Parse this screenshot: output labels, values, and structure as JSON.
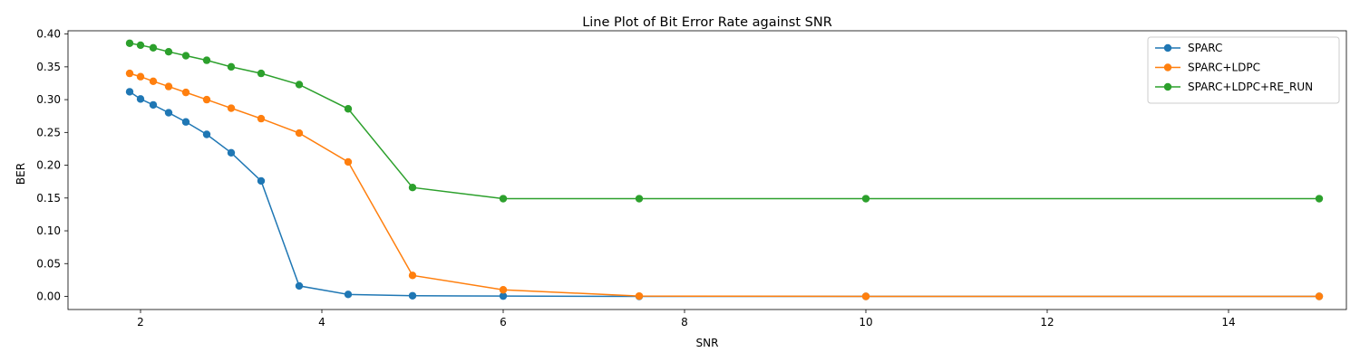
{
  "chart_data": {
    "type": "line",
    "title": "Line Plot of Bit Error Rate against SNR",
    "xlabel": "SNR",
    "ylabel": "BER",
    "xlim": [
      1.2,
      15.3
    ],
    "ylim": [
      -0.02,
      0.405
    ],
    "xticks": [
      2,
      4,
      6,
      8,
      10,
      12,
      14
    ],
    "yticks": [
      0.0,
      0.05,
      0.1,
      0.15,
      0.2,
      0.25,
      0.3,
      0.35,
      0.4
    ],
    "ytick_labels": [
      "0.00",
      "0.05",
      "0.10",
      "0.15",
      "0.20",
      "0.25",
      "0.30",
      "0.35",
      "0.40"
    ],
    "grid": false,
    "legend_position": "top-right",
    "x": [
      1.88,
      2.0,
      2.14,
      2.31,
      2.5,
      2.73,
      3.0,
      3.33,
      3.75,
      4.29,
      5.0,
      6.0,
      7.5,
      10.0,
      15.0
    ],
    "series": [
      {
        "name": "SPARC",
        "color": "#1f77b4",
        "values": [
          0.312,
          0.301,
          0.292,
          0.28,
          0.266,
          0.247,
          0.219,
          0.176,
          0.016,
          0.003,
          0.001,
          0.0005,
          0.0,
          0.0,
          0.0
        ]
      },
      {
        "name": "SPARC+LDPC",
        "color": "#ff7f0e",
        "values": [
          0.34,
          0.335,
          0.328,
          0.32,
          0.311,
          0.3,
          0.287,
          0.271,
          0.249,
          0.205,
          0.032,
          0.01,
          0.0005,
          0.0,
          0.0
        ]
      },
      {
        "name": "SPARC+LDPC+RE_RUN",
        "color": "#2ca02c",
        "values": [
          0.386,
          0.383,
          0.379,
          0.373,
          0.367,
          0.36,
          0.35,
          0.34,
          0.323,
          0.286,
          0.166,
          0.149,
          0.149,
          0.149,
          0.149
        ]
      }
    ]
  }
}
